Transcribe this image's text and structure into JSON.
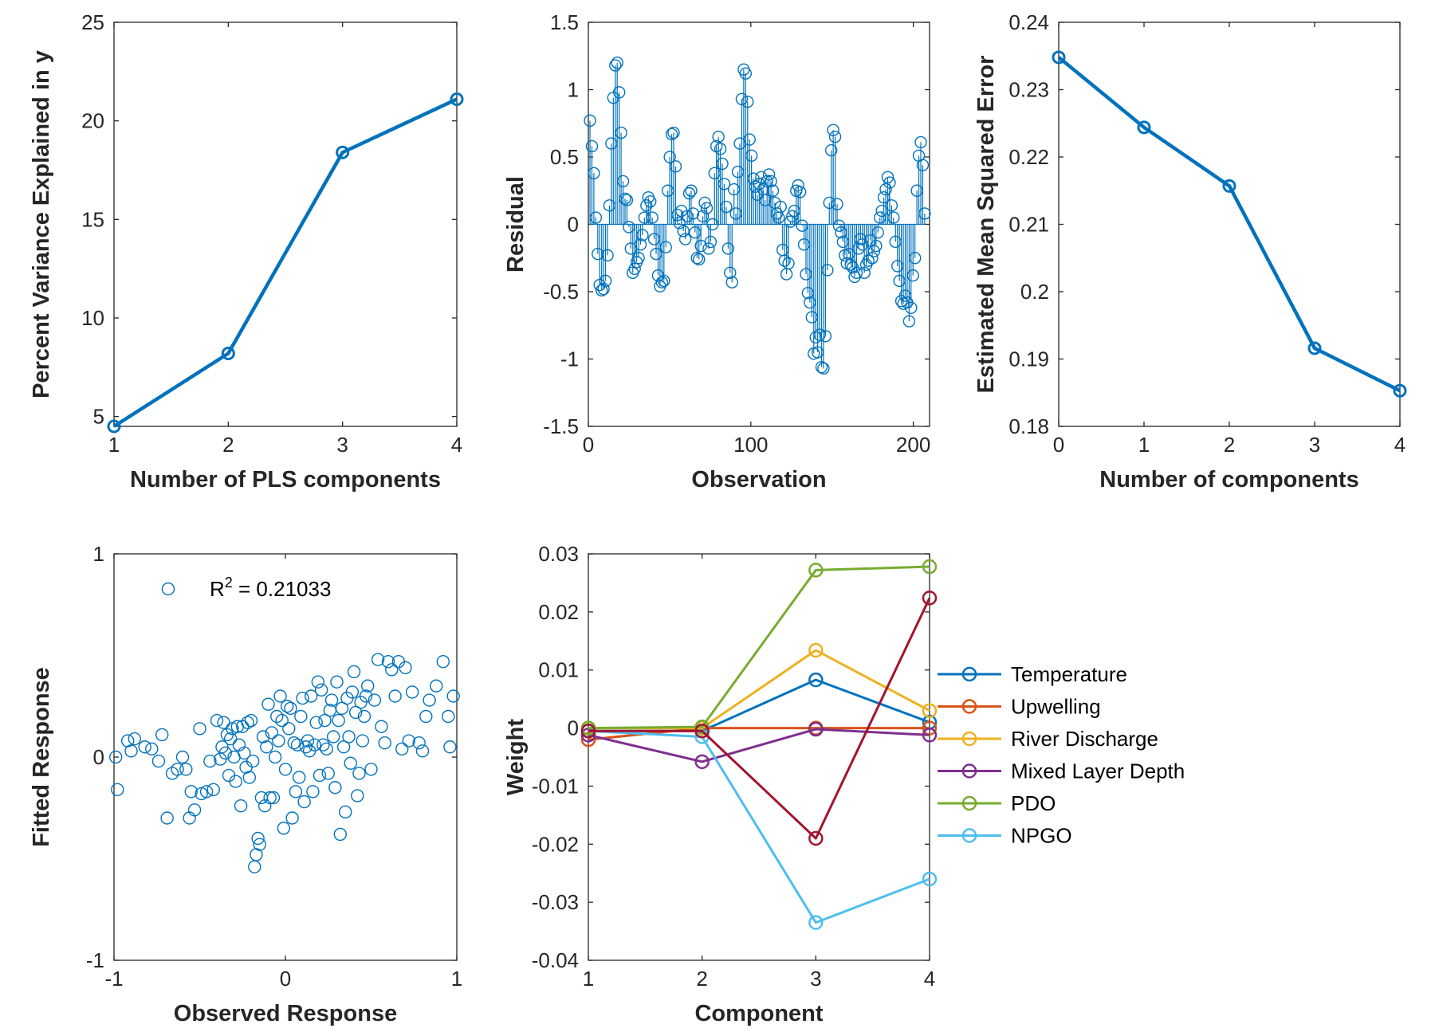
{
  "chart_data": [
    {
      "type": "line",
      "xlabel": "Number of PLS components",
      "ylabel": "Percent Variance Explained in y",
      "xlim": [
        1,
        4
      ],
      "ylim": [
        4.5,
        25
      ],
      "xticks": [
        1,
        2,
        3,
        4
      ],
      "yticks": [
        5,
        10,
        15,
        20,
        25
      ],
      "grid": false,
      "series": [
        {
          "x": [
            1,
            2,
            3,
            4
          ],
          "values": [
            4.5,
            8.2,
            18.4,
            21.1
          ],
          "color": "#0072BD"
        }
      ]
    },
    {
      "type": "stem",
      "xlabel": "Observation",
      "ylabel": "Residual",
      "xlim": [
        0,
        210
      ],
      "ylim": [
        -1.5,
        1.5
      ],
      "xticks": [
        0,
        100,
        200
      ],
      "yticks": [
        -1.5,
        -1,
        -0.5,
        0,
        0.5,
        1,
        1.5
      ],
      "tick_labels_x": [
        "0",
        "100",
        "200"
      ],
      "tick_labels_y": [
        "-1.5",
        "-1",
        "-0.5",
        "0",
        "0.5",
        "1",
        "1.5"
      ],
      "grid": false,
      "color": "#0072BD",
      "values": [
        0.77,
        0.58,
        0.38,
        0.05,
        -0.22,
        -0.45,
        -0.49,
        -0.48,
        -0.42,
        -0.23,
        0.14,
        0.6,
        0.94,
        1.18,
        1.2,
        0.98,
        0.68,
        0.32,
        0.19,
        0.18,
        -0.02,
        -0.18,
        -0.36,
        -0.33,
        -0.28,
        -0.25,
        -0.15,
        -0.08,
        0.05,
        0.14,
        0.2,
        0.17,
        0.05,
        -0.11,
        -0.22,
        -0.38,
        -0.46,
        -0.43,
        -0.42,
        -0.17,
        0.25,
        0.5,
        0.67,
        0.68,
        0.43,
        0.07,
        0.01,
        0.1,
        -0.05,
        -0.11,
        0.06,
        0.23,
        0.25,
        0.08,
        -0.06,
        -0.25,
        -0.26,
        -0.16,
        0.06,
        0.16,
        0.12,
        -0.18,
        -0.13,
        0.0,
        0.38,
        0.58,
        0.65,
        0.56,
        0.45,
        0.3,
        0.13,
        -0.18,
        -0.36,
        -0.43,
        0.26,
        0.08,
        0.39,
        0.6,
        0.93,
        1.15,
        1.12,
        0.91,
        0.63,
        0.51,
        0.34,
        0.28,
        0.22,
        0.3,
        0.35,
        0.26,
        0.18,
        0.32,
        0.37,
        0.32,
        0.25,
        0.16,
        0.08,
        0.05,
        0.13,
        -0.19,
        -0.27,
        -0.37,
        -0.29,
        0.02,
        0.06,
        0.1,
        0.25,
        0.29,
        0.24,
        -0.01,
        -0.15,
        -0.37,
        -0.51,
        -0.58,
        -0.69,
        -0.96,
        -0.84,
        -0.95,
        -0.82,
        -1.06,
        -1.07,
        -0.83,
        -0.34,
        0.16,
        0.55,
        0.7,
        0.65,
        0.15,
        -0.01,
        -0.06,
        -0.13,
        -0.23,
        -0.29,
        -0.22,
        -0.3,
        -0.32,
        -0.39,
        -0.36,
        -0.18,
        -0.11,
        -0.15,
        -0.36,
        -0.3,
        -0.27,
        -0.12,
        -0.25,
        -0.2,
        -0.16,
        -0.06,
        0.05,
        0.1,
        0.2,
        0.26,
        0.35,
        0.31,
        0.14,
        0.05,
        -0.13,
        -0.31,
        -0.42,
        -0.57,
        -0.59,
        -0.53,
        -0.58,
        -0.72,
        -0.62,
        -0.38,
        -0.25,
        0.25,
        0.51,
        0.61,
        0.44,
        0.08
      ],
      "x_start": 1,
      "x_end": 207
    },
    {
      "type": "line",
      "xlabel": "Number of components",
      "ylabel": "Estimated Mean Squared Error",
      "xlim": [
        0,
        4
      ],
      "ylim": [
        0.18,
        0.24
      ],
      "xticks": [
        0,
        1,
        2,
        3,
        4
      ],
      "yticks": [
        0.18,
        0.19,
        0.2,
        0.21,
        0.22,
        0.23,
        0.24
      ],
      "grid": false,
      "series": [
        {
          "x": [
            0,
            1,
            2,
            3,
            4
          ],
          "values": [
            0.2348,
            0.2244,
            0.2157,
            0.1916,
            0.1853
          ],
          "color": "#0072BD"
        }
      ]
    },
    {
      "type": "scatter",
      "xlabel": "Observed Response",
      "ylabel": "Fitted Response",
      "xlim": [
        -1,
        1
      ],
      "ylim": [
        -1,
        1
      ],
      "xticks": [
        -1,
        0,
        1
      ],
      "yticks": [
        -1,
        0,
        1
      ],
      "grid": false,
      "color": "#0072BD",
      "legend": {
        "text_main": "R",
        "text_sup": "2",
        "text_rest": " = 0.21033",
        "placement": "top-left"
      },
      "points": [
        [
          -0.99,
          0.0
        ],
        [
          -0.98,
          -0.16
        ],
        [
          -0.92,
          0.08
        ],
        [
          -0.9,
          0.03
        ],
        [
          -0.88,
          0.09
        ],
        [
          -0.82,
          0.05
        ],
        [
          -0.78,
          0.04
        ],
        [
          -0.74,
          -0.02
        ],
        [
          -0.72,
          0.11
        ],
        [
          -0.69,
          -0.3
        ],
        [
          -0.66,
          -0.08
        ],
        [
          -0.63,
          -0.06
        ],
        [
          -0.6,
          0.0
        ],
        [
          -0.58,
          -0.06
        ],
        [
          -0.56,
          -0.3
        ],
        [
          -0.55,
          -0.17
        ],
        [
          -0.53,
          -0.26
        ],
        [
          -0.5,
          0.14
        ],
        [
          -0.49,
          -0.18
        ],
        [
          -0.46,
          -0.17
        ],
        [
          -0.44,
          -0.02
        ],
        [
          -0.42,
          -0.16
        ],
        [
          -0.4,
          0.18
        ],
        [
          -0.38,
          -0.01
        ],
        [
          -0.37,
          0.05
        ],
        [
          -0.36,
          0.17
        ],
        [
          -0.35,
          0.02
        ],
        [
          -0.34,
          0.11
        ],
        [
          -0.33,
          -0.09
        ],
        [
          -0.32,
          0.09
        ],
        [
          -0.31,
          0.14
        ],
        [
          -0.3,
          0.0
        ],
        [
          -0.29,
          -0.12
        ],
        [
          -0.28,
          0.15
        ],
        [
          -0.27,
          0.06
        ],
        [
          -0.26,
          -0.24
        ],
        [
          -0.25,
          0.15
        ],
        [
          -0.24,
          0.02
        ],
        [
          -0.23,
          -0.05
        ],
        [
          -0.22,
          0.17
        ],
        [
          -0.21,
          -0.1
        ],
        [
          -0.2,
          0.18
        ],
        [
          -0.19,
          -0.02
        ],
        [
          -0.18,
          -0.54
        ],
        [
          -0.17,
          -0.48
        ],
        [
          -0.16,
          -0.4
        ],
        [
          -0.15,
          -0.43
        ],
        [
          -0.14,
          -0.2
        ],
        [
          -0.13,
          0.1
        ],
        [
          -0.12,
          -0.24
        ],
        [
          -0.11,
          0.05
        ],
        [
          -0.1,
          0.26
        ],
        [
          -0.09,
          -0.2
        ],
        [
          -0.08,
          0.12
        ],
        [
          -0.07,
          -0.2
        ],
        [
          -0.06,
          0.0
        ],
        [
          -0.05,
          0.2
        ],
        [
          -0.04,
          0.08
        ],
        [
          -0.03,
          0.3
        ],
        [
          -0.02,
          0.18
        ],
        [
          -0.01,
          -0.35
        ],
        [
          0.0,
          -0.06
        ],
        [
          0.01,
          0.25
        ],
        [
          0.02,
          0.14
        ],
        [
          0.03,
          0.24
        ],
        [
          0.04,
          -0.3
        ],
        [
          0.05,
          0.07
        ],
        [
          0.06,
          -0.17
        ],
        [
          0.07,
          0.06
        ],
        [
          0.08,
          -0.1
        ],
        [
          0.09,
          0.2
        ],
        [
          0.1,
          0.29
        ],
        [
          0.11,
          -0.22
        ],
        [
          0.12,
          0.05
        ],
        [
          0.13,
          0.08
        ],
        [
          0.14,
          0.03
        ],
        [
          0.15,
          0.3
        ],
        [
          0.16,
          -0.17
        ],
        [
          0.17,
          0.06
        ],
        [
          0.18,
          0.17
        ],
        [
          0.19,
          0.37
        ],
        [
          0.2,
          -0.09
        ],
        [
          0.21,
          0.33
        ],
        [
          0.22,
          0.06
        ],
        [
          0.23,
          0.18
        ],
        [
          0.24,
          0.04
        ],
        [
          0.25,
          -0.08
        ],
        [
          0.26,
          0.23
        ],
        [
          0.27,
          0.28
        ],
        [
          0.28,
          0.1
        ],
        [
          0.29,
          -0.15
        ],
        [
          0.3,
          0.37
        ],
        [
          0.31,
          0.18
        ],
        [
          0.32,
          -0.38
        ],
        [
          0.33,
          0.24
        ],
        [
          0.34,
          0.05
        ],
        [
          0.35,
          -0.27
        ],
        [
          0.36,
          0.29
        ],
        [
          0.37,
          0.1
        ],
        [
          0.38,
          -0.03
        ],
        [
          0.39,
          0.32
        ],
        [
          0.4,
          0.42
        ],
        [
          0.41,
          0.22
        ],
        [
          0.42,
          -0.19
        ],
        [
          0.43,
          -0.08
        ],
        [
          0.44,
          0.27
        ],
        [
          0.45,
          0.08
        ],
        [
          0.46,
          0.2
        ],
        [
          0.47,
          0.3
        ],
        [
          0.48,
          0.35
        ],
        [
          0.5,
          -0.06
        ],
        [
          0.52,
          0.28
        ],
        [
          0.54,
          0.48
        ],
        [
          0.56,
          0.15
        ],
        [
          0.58,
          0.07
        ],
        [
          0.6,
          0.47
        ],
        [
          0.62,
          0.43
        ],
        [
          0.64,
          0.3
        ],
        [
          0.66,
          0.47
        ],
        [
          0.68,
          0.04
        ],
        [
          0.7,
          0.44
        ],
        [
          0.72,
          0.08
        ],
        [
          0.74,
          0.32
        ],
        [
          0.78,
          0.07
        ],
        [
          0.8,
          0.03
        ],
        [
          0.82,
          0.2
        ],
        [
          0.84,
          0.28
        ],
        [
          0.88,
          0.35
        ],
        [
          0.92,
          0.47
        ],
        [
          0.95,
          0.2
        ],
        [
          0.96,
          0.05
        ],
        [
          0.98,
          0.3
        ]
      ]
    },
    {
      "type": "line",
      "xlabel": "Component",
      "ylabel": "Weight",
      "xlim": [
        1,
        4
      ],
      "ylim": [
        -0.04,
        0.03
      ],
      "xticks": [
        1,
        2,
        3,
        4
      ],
      "yticks": [
        -0.04,
        -0.03,
        -0.02,
        -0.01,
        0,
        0.01,
        0.02,
        0.03
      ],
      "tick_labels_y": [
        "-0.04",
        "-0.03",
        "-0.02",
        "-0.01",
        "0",
        "0.01",
        "0.02",
        "0.03"
      ],
      "grid": false,
      "legend_placement": "outside-right",
      "categories": [
        1,
        2,
        3,
        4
      ],
      "series": [
        {
          "name": "Temperature",
          "values": [
            -0.0005,
            -0.0005,
            0.0083,
            0.001
          ],
          "color": "#0072BD"
        },
        {
          "name": "Upwelling",
          "values": [
            -0.002,
            0.0,
            0.0,
            0.0
          ],
          "color": "#D95319"
        },
        {
          "name": "River Discharge",
          "values": [
            0.0,
            0.0,
            0.0134,
            0.003
          ],
          "color": "#EDB120"
        },
        {
          "name": "Mixed Layer Depth",
          "values": [
            -0.0012,
            -0.0058,
            -0.0002,
            -0.0012
          ],
          "color": "#7E2F8E"
        },
        {
          "name": "PDO",
          "values": [
            0.0,
            0.0002,
            0.0272,
            0.0278
          ],
          "color": "#77AC30"
        },
        {
          "name": "NPGO",
          "values": [
            -0.0005,
            -0.0015,
            -0.0335,
            -0.026
          ],
          "color": "#4DBEEE"
        },
        {
          "name": "",
          "values": [
            -0.0005,
            -0.0005,
            -0.019,
            0.0224
          ],
          "color": "#A2142F"
        }
      ]
    }
  ]
}
